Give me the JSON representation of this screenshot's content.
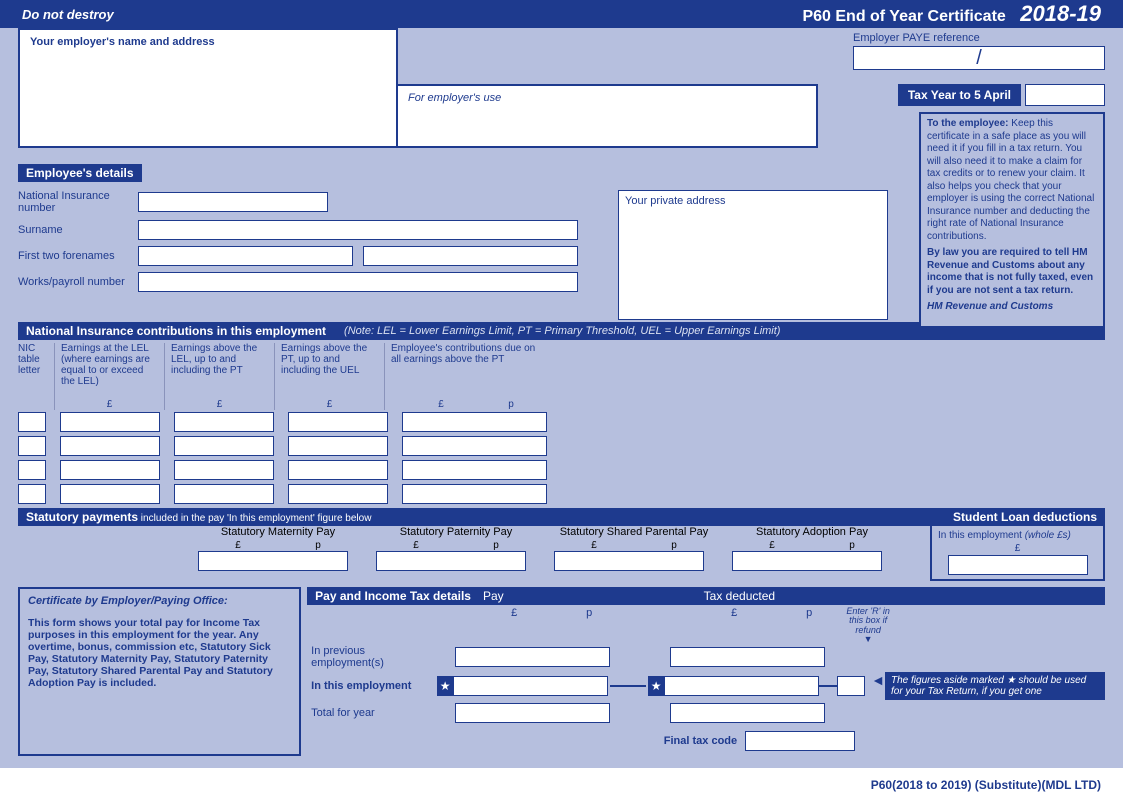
{
  "colors": {
    "primary": "#1e3a8e",
    "body_bg": "#b6bfde",
    "input_bg": "#ffffff"
  },
  "header": {
    "do_not_destroy": "Do not destroy",
    "title": "P60  End of Year Certificate",
    "year": "2018-19"
  },
  "top": {
    "employer_name_label": "Your employer's name and address",
    "employer_use_label": "For employer's use",
    "paye_label": "Employer PAYE reference",
    "paye_sep": "/",
    "tax_year_label": "Tax Year to 5 April"
  },
  "employee_notice": {
    "lead": "To the employee:",
    "body": " Keep this certificate in a safe place as you will need it if you fill in a tax return. You will also need it to make a claim for tax credits or to renew your claim. It also helps you check that your employer is using the correct National Insurance number and deducting the right rate of National Insurance contributions.",
    "law": "By law you are required to tell HM Revenue and Customs about any income that is not fully taxed, even if you are not sent a tax return.",
    "sig": "HM Revenue and Customs"
  },
  "employee_details": {
    "header": "Employee's details",
    "ni_label": "National Insurance number",
    "surname_label": "Surname",
    "forenames_label": "First two forenames",
    "works_label": "Works/payroll number",
    "private_addr_label": "Your private address"
  },
  "nic": {
    "header": "National Insurance contributions in this employment",
    "note": "(Note: LEL = Lower Earnings Limit, PT = Primary Threshold, UEL = Upper Earnings Limit)",
    "cols": {
      "letter": "NIC table letter",
      "lel": "Earnings at the LEL (where earnings are equal to or exceed the LEL)",
      "above_lel": "Earnings above the LEL, up to and including the PT",
      "above_pt": "Earnings above the PT, up to and including the UEL",
      "contrib": "Employee's contributions due on all earnings above the PT"
    },
    "pound": "£",
    "pence": "p",
    "row_count": 4
  },
  "statutory": {
    "header": "Statutory payments",
    "sub": " included in the pay 'In this employment' figure below",
    "student_header": "Student Loan deductions",
    "cols": [
      "Statutory Maternity Pay",
      "Statutory Paternity Pay",
      "Statutory Shared Parental Pay",
      "Statutory Adoption Pay"
    ],
    "student_note": "In this employment ",
    "student_note_em": "(whole £s)"
  },
  "cert": {
    "title": "Certificate by Employer/Paying Office:",
    "body": "This form shows your total pay for Income Tax purposes in this employment for the year. Any overtime, bonus, commission etc, Statutory Sick Pay, Statutory Maternity Pay, Statutory Paternity Pay, Statutory Shared Parental Pay and Statutory Adoption Pay is included."
  },
  "pay": {
    "header": "Pay and Income Tax details",
    "pay_hdr": "Pay",
    "tax_hdr": "Tax deducted",
    "refund_hint": "Enter 'R' in this box if refund",
    "rows": {
      "prev": "In previous employment(s)",
      "this": "In this employment",
      "total": "Total for year"
    },
    "final_tax_code": "Final tax code",
    "figures_note": "The figures aside marked ★ should be used for your Tax Return, if you get one",
    "star": "★",
    "arrow_down": "▼",
    "arrow_left": "◄"
  },
  "footer": "P60(2018 to 2019) (Substitute)(MDL LTD)"
}
